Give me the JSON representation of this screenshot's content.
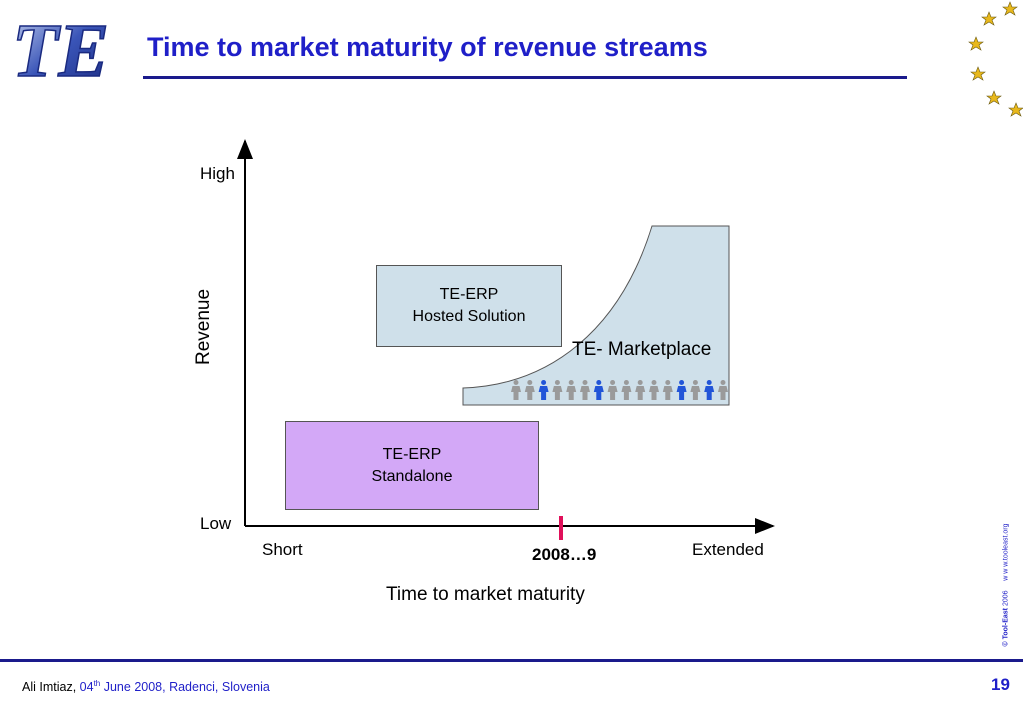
{
  "slide": {
    "title": "Time to market maturity of revenue streams",
    "page_number": "19",
    "colors": {
      "title": "#1f1fc8",
      "rule": "#1a1a8c",
      "hosted_fill": "#cfe0ea",
      "standalone_fill": "#d3a8f7",
      "market_fill": "#cfe0ea",
      "marker": "#e0105a"
    }
  },
  "logo": {
    "text": "TE"
  },
  "diagram": {
    "y_axis": {
      "label": "Revenue",
      "high": "High",
      "low": "Low"
    },
    "x_axis": {
      "label": "Time to market maturity",
      "short": "Short",
      "extended": "Extended",
      "marker_label": "2008…9"
    },
    "hosted": {
      "line1": "TE-ERP",
      "line2": "Hosted Solution"
    },
    "standalone": {
      "line1": "TE-ERP",
      "line2": "Standalone"
    },
    "marketplace": {
      "label": "TE- Marketplace"
    },
    "people_colors": [
      "#9a9a9a",
      "#9a9a9a",
      "#2255d8",
      "#9a9a9a",
      "#9a9a9a",
      "#9a9a9a",
      "#2255d8",
      "#9a9a9a",
      "#9a9a9a",
      "#9a9a9a",
      "#9a9a9a",
      "#9a9a9a",
      "#2255d8",
      "#9a9a9a",
      "#2255d8",
      "#9a9a9a"
    ]
  },
  "footer": {
    "author": "Ali Imtiaz,",
    "date_day": "04",
    "date_sup": "th",
    "date_rest": "June 2008, Radenci, Slovenia",
    "copyright_brand": "© Tool-East",
    "copyright_year": "2006",
    "copyright_url": "w w w.tooleast.org"
  }
}
